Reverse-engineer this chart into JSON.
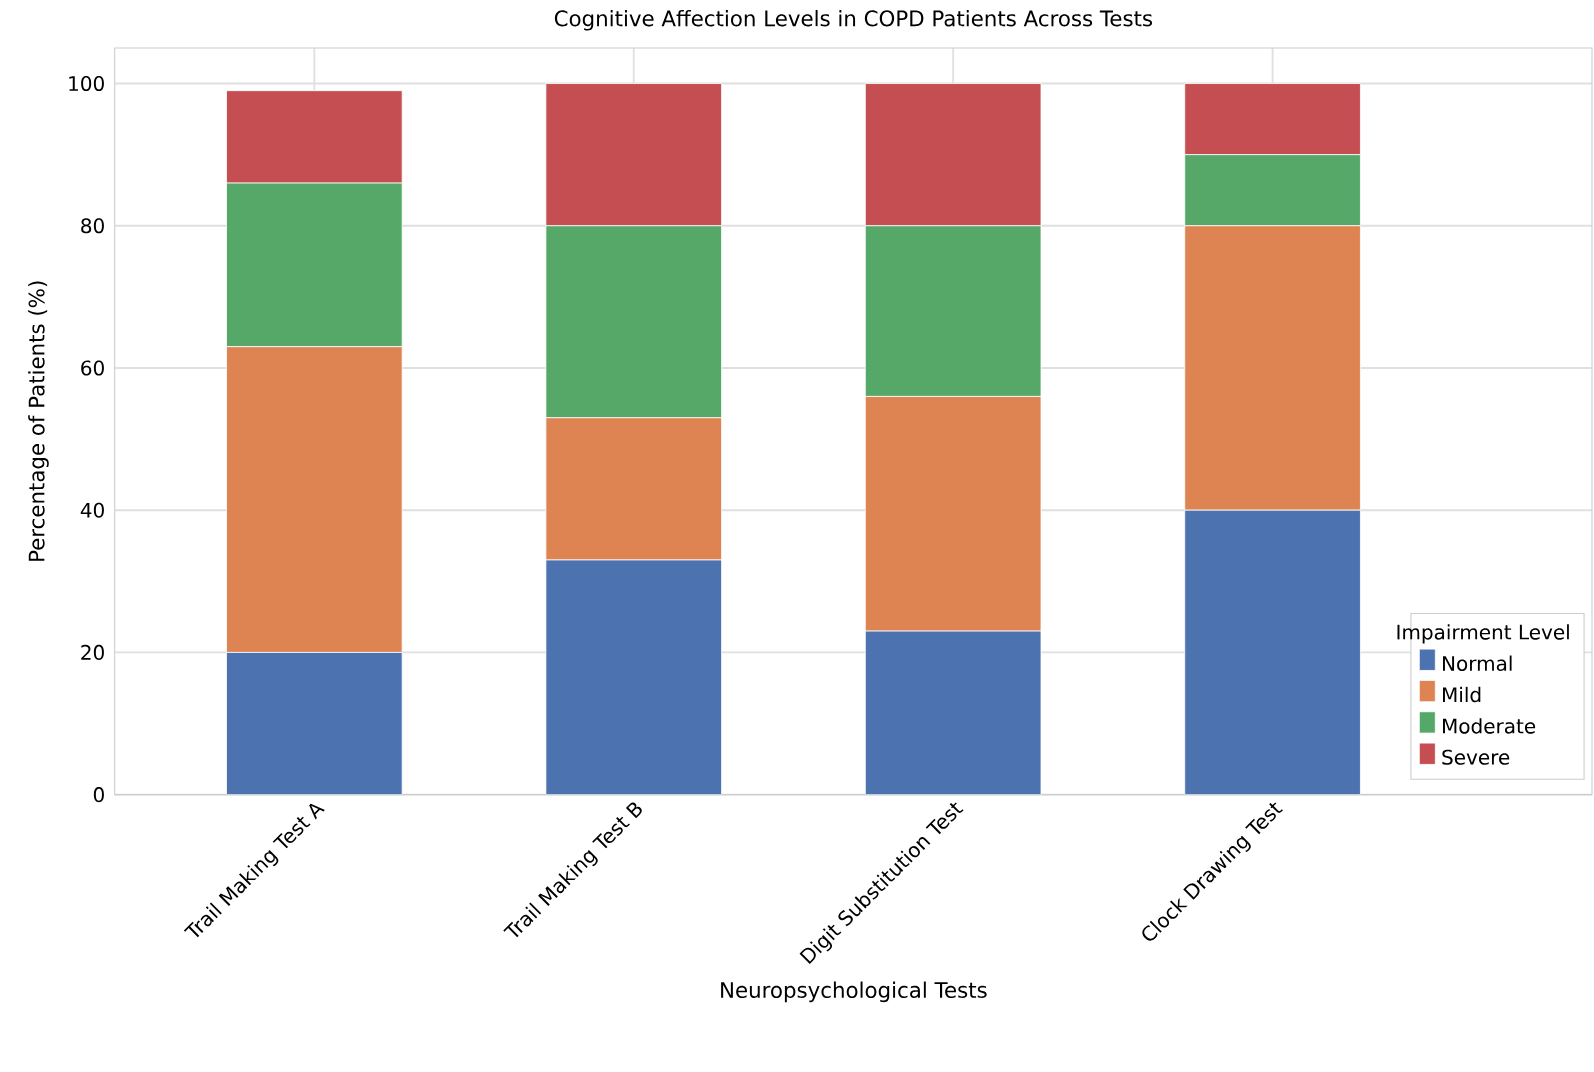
{
  "chart_data": {
    "type": "bar",
    "stacked": true,
    "title": "Cognitive Affection Levels in COPD Patients Across Tests",
    "xlabel": "Neuropsychological Tests",
    "ylabel": "Percentage of Patients (%)",
    "legend_title": "Impairment Level",
    "categories": [
      "Trail Making Test A",
      "Trail Making Test B",
      "Digit Substitution Test",
      "Clock Drawing Test"
    ],
    "series": [
      {
        "name": "Normal",
        "color": "#4c72b0",
        "values": [
          20,
          33,
          23,
          40
        ]
      },
      {
        "name": "Mild",
        "color": "#dd8452",
        "values": [
          43,
          20,
          33,
          40
        ]
      },
      {
        "name": "Moderate",
        "color": "#55a868",
        "values": [
          23,
          27,
          24,
          10
        ]
      },
      {
        "name": "Severe",
        "color": "#c44e52",
        "values": [
          13,
          20,
          20,
          10
        ]
      }
    ],
    "ylim": [
      0,
      105
    ],
    "yticks": [
      0,
      20,
      40,
      60,
      80,
      100
    ],
    "grid": true,
    "legend": "bottom right"
  }
}
